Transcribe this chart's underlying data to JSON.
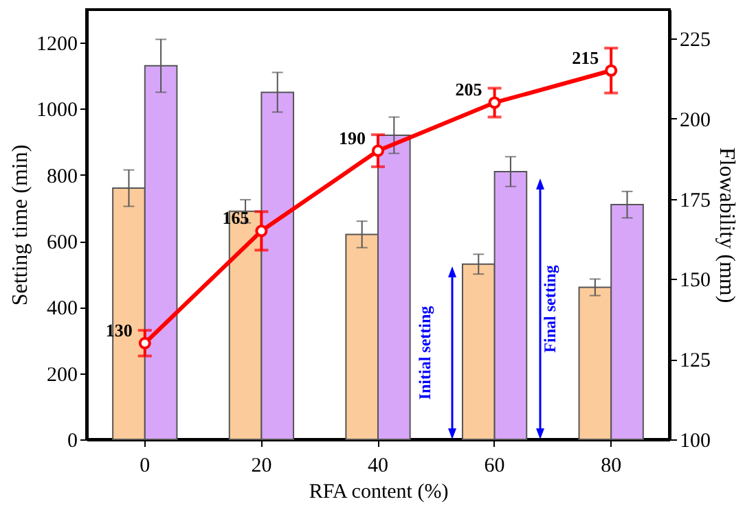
{
  "chart_data": {
    "type": "bar",
    "xlabel": "RFA content (%)",
    "ylabel": "Setting time (min)",
    "y2label": "Flowability (mm)",
    "categories": [
      "0",
      "20",
      "40",
      "60",
      "80"
    ],
    "series": [
      {
        "color": "#fccb9b",
        "values": [
          760,
          690,
          620,
          530,
          460
        ],
        "errors": [
          55,
          35,
          40,
          30,
          25
        ]
      },
      {
        "color": "#d7a6f8",
        "values": [
          1130,
          1050,
          920,
          810,
          710
        ],
        "errors": [
          80,
          60,
          55,
          45,
          40
        ]
      },
      {
        "type": "line",
        "axis": "y2",
        "color": "#ff0000",
        "values": [
          130,
          165,
          190,
          205,
          215
        ],
        "errors": [
          4,
          6,
          5,
          4.5,
          7
        ],
        "value_labels": [
          "130",
          "165",
          "190",
          "205",
          "215"
        ]
      }
    ],
    "ylim": [
      0,
      1300
    ],
    "yticks": [
      0,
      200,
      400,
      600,
      800,
      {
        "value": 1000,
        "label": "1000"
      },
      {
        "value": 1200,
        "label": "1200"
      }
    ],
    "y2lim": [
      100,
      234
    ],
    "y2ticks": [
      100,
      125,
      150,
      175,
      200,
      225
    ],
    "marker": "circle",
    "grid": false,
    "annotations": [
      "Initial setting",
      "Final setting"
    ]
  }
}
